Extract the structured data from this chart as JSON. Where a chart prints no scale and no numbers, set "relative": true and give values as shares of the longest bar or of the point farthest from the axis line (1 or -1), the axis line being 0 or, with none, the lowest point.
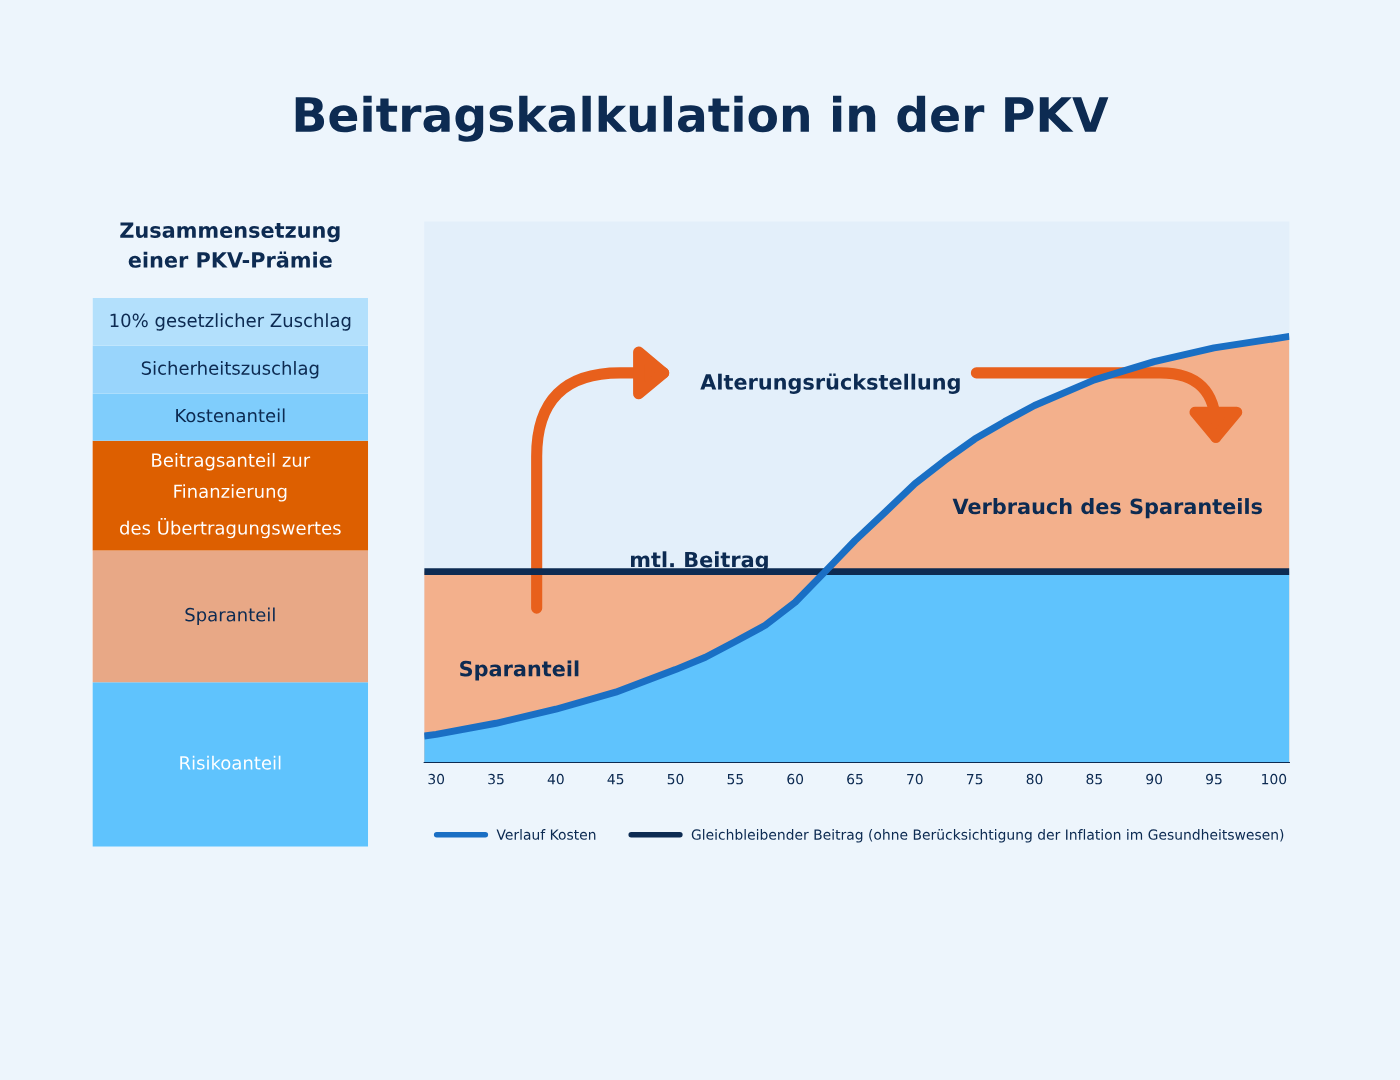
{
  "chart_data": [
    {
      "type": "bar",
      "title": "Zusammensetzung\neiner PKV-Prämie",
      "stacked": true,
      "relative": true,
      "categories": [
        null
      ],
      "series": [
        {
          "name": "Risikoanteil",
          "color": "#5fc3fd",
          "values": [
            0.3
          ]
        },
        {
          "name": "Sparanteil",
          "color": "#e8a886",
          "values": [
            0.24
          ]
        },
        {
          "name": "Beitragsanteil zur\nFinanzierung\ndes Übertragungswertes",
          "color": "#dd5f00",
          "values": [
            0.2
          ]
        },
        {
          "name": "Kostenanteil",
          "color": "#7fcdfc",
          "values": [
            0.086
          ]
        },
        {
          "name": "Sicherheitszuschlag",
          "color": "#99d5fc",
          "values": [
            0.087
          ]
        },
        {
          "name": "10% gesetzlicher Zuschlag",
          "color": "#b3e0fc",
          "values": [
            0.087
          ]
        }
      ]
    },
    {
      "type": "line",
      "title": "Beitragskalkulation in der PKV",
      "relative": true,
      "x": [
        29,
        30,
        35,
        40,
        45,
        50,
        52.5,
        55,
        57.5,
        60,
        62.5,
        65,
        67.5,
        70,
        72.5,
        75,
        77.5,
        80,
        85,
        90,
        95,
        101.3
      ],
      "xlim": [
        29,
        101.3
      ],
      "xticks": [
        30,
        35,
        40,
        45,
        50,
        55,
        60,
        65,
        70,
        75,
        80,
        85,
        90,
        95,
        100
      ],
      "series": [
        {
          "type": "area",
          "color": "#f3b08c",
          "values": [
            0.448,
            0.448,
            0.448,
            0.448,
            0.448,
            0.448,
            0.448,
            0.448,
            0.448,
            0.448,
            0.448,
            0.521,
            0.587,
            0.654,
            0.709,
            0.759,
            0.8,
            0.838,
            0.898,
            0.941,
            0.973,
            1.0
          ]
        },
        {
          "type": "area",
          "color": "#5fc3fd",
          "values": [
            0.062,
            0.066,
            0.092,
            0.125,
            0.165,
            0.218,
            0.247,
            0.284,
            0.322,
            0.376,
            0.448,
            0.448,
            0.448,
            0.448,
            0.448,
            0.448,
            0.448,
            0.448,
            0.448,
            0.448,
            0.448,
            0.448
          ]
        },
        {
          "name": "Gleichbleibender Beitrag (ohne Berücksichtigung der Inflation im Gesundheitswesen)",
          "color": "#0d2b52",
          "values": [
            0.448,
            0.448,
            0.448,
            0.448,
            0.448,
            0.448,
            0.448,
            0.448,
            0.448,
            0.448,
            0.448,
            0.448,
            0.448,
            0.448,
            0.448,
            0.448,
            0.448,
            0.448,
            0.448,
            0.448,
            0.448,
            0.448
          ]
        },
        {
          "name": "Verlauf Kosten",
          "color": "#1a6fc4",
          "values": [
            0.062,
            0.066,
            0.092,
            0.125,
            0.165,
            0.218,
            0.247,
            0.284,
            0.322,
            0.376,
            0.448,
            0.521,
            0.587,
            0.654,
            0.709,
            0.759,
            0.8,
            0.838,
            0.898,
            0.941,
            0.973,
            1.0
          ]
        }
      ],
      "legend": "bottom",
      "line_style": "solid",
      "annotations": [
        {
          "text": "mtl. Beitrag",
          "x": 52,
          "y": 0.448
        },
        "Sparanteil",
        "Alterungsrückstellung",
        "Verbrauch des Sparanteils"
      ]
    }
  ]
}
